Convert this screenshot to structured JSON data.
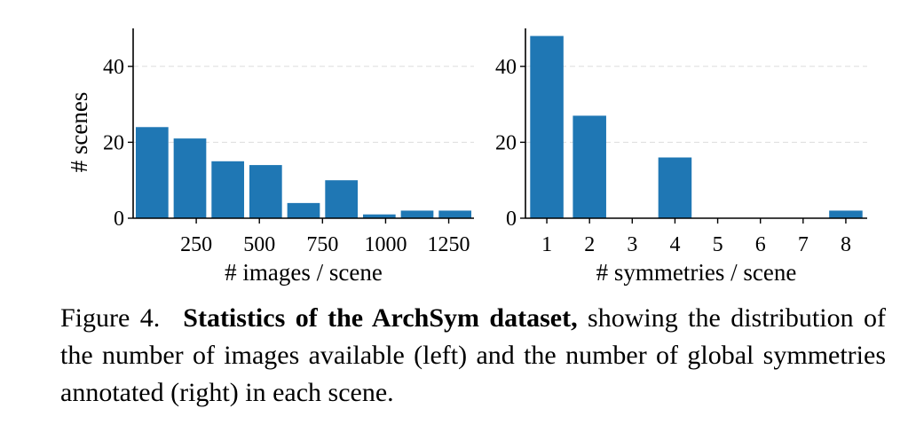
{
  "chart_data": [
    {
      "type": "bar",
      "x": [
        75,
        225,
        375,
        525,
        675,
        825,
        975,
        1125,
        1275
      ],
      "values": [
        24,
        21,
        15,
        14,
        4,
        10,
        1,
        2,
        2
      ],
      "xlim": [
        0,
        1350
      ],
      "ylim": [
        0,
        50
      ],
      "xticks": [
        250,
        500,
        750,
        1000,
        1250
      ],
      "xtick_labels": [
        "250",
        "500",
        "750",
        "1000",
        "1250"
      ],
      "yticks": [
        0,
        20,
        40
      ],
      "ytick_labels": [
        "0",
        "20",
        "40"
      ],
      "xlabel": "# images / scene",
      "ylabel": "# scenes",
      "color": "#1f77b4",
      "grid": "horizontal dashed"
    },
    {
      "type": "bar",
      "x": [
        1,
        2,
        3,
        4,
        5,
        6,
        7,
        8
      ],
      "values": [
        48,
        27,
        0,
        16,
        0,
        0,
        0,
        2
      ],
      "xlim": [
        0.5,
        8.5
      ],
      "ylim": [
        0,
        50
      ],
      "xticks": [
        1,
        2,
        3,
        4,
        5,
        6,
        7,
        8
      ],
      "xtick_labels": [
        "1",
        "2",
        "3",
        "4",
        "5",
        "6",
        "7",
        "8"
      ],
      "yticks": [
        0,
        20,
        40
      ],
      "ytick_labels": [
        "0",
        "20",
        "40"
      ],
      "xlabel": "# symmetries / scene",
      "ylabel": "",
      "color": "#1f77b4",
      "grid": "horizontal dashed"
    }
  ],
  "caption": {
    "figure_number": "Figure 4.",
    "title": "Statistics of the ArchSym dataset,",
    "text": " showing the distribution of the number of images available (left) and the number of global symmetries annotated (right) in each scene."
  }
}
